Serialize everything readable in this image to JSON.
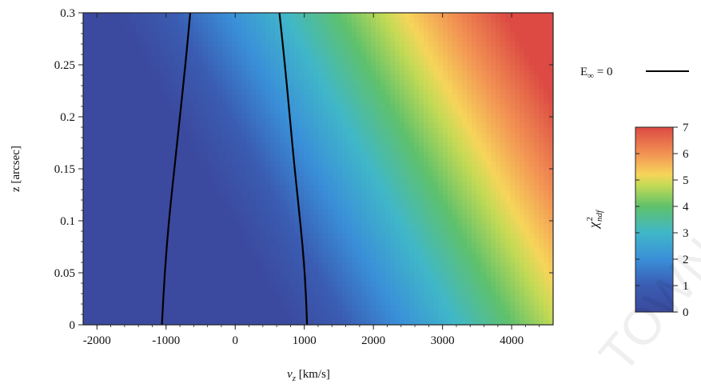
{
  "chart_data": {
    "type": "heatmap",
    "xlabel_main": "v",
    "xlabel_sub": "z",
    "xlabel_unit": " [km/s]",
    "ylabel": "z [arcsec]",
    "xlim": [
      -2200,
      4600
    ],
    "ylim": [
      0,
      0.3
    ],
    "x_ticks": [
      {
        "v": -2000,
        "label": "-2000"
      },
      {
        "v": -1000,
        "label": "-1000"
      },
      {
        "v": 0,
        "label": "0"
      },
      {
        "v": 1000,
        "label": "1000"
      },
      {
        "v": 2000,
        "label": "2000"
      },
      {
        "v": 3000,
        "label": "3000"
      },
      {
        "v": 4000,
        "label": "4000"
      }
    ],
    "y_ticks": [
      {
        "v": 0,
        "label": "0"
      },
      {
        "v": 0.05,
        "label": "0.05"
      },
      {
        "v": 0.1,
        "label": "0.1"
      },
      {
        "v": 0.15,
        "label": "0.15"
      },
      {
        "v": 0.2,
        "label": "0.2"
      },
      {
        "v": 0.25,
        "label": "0.25"
      },
      {
        "v": 0.3,
        "label": "0.3"
      }
    ],
    "colorbar": {
      "label_main": "χ",
      "label_sup": "2",
      "label_sub": "ndf",
      "range": [
        0,
        7
      ],
      "ticks": [
        {
          "v": 0,
          "label": "0"
        },
        {
          "v": 1,
          "label": "1"
        },
        {
          "v": 2,
          "label": "2"
        },
        {
          "v": 3,
          "label": "3"
        },
        {
          "v": 4,
          "label": "4"
        },
        {
          "v": 5,
          "label": "5"
        },
        {
          "v": 6,
          "label": "6"
        },
        {
          "v": 7,
          "label": "7"
        }
      ],
      "stops": [
        {
          "v": 0,
          "color": "#3b4a9e"
        },
        {
          "v": 1,
          "color": "#3a5cb2"
        },
        {
          "v": 2,
          "color": "#3a8fd8"
        },
        {
          "v": 3,
          "color": "#40b7c9"
        },
        {
          "v": 4,
          "color": "#5fc16b"
        },
        {
          "v": 4.8,
          "color": "#c4da55"
        },
        {
          "v": 5.2,
          "color": "#f6d55a"
        },
        {
          "v": 6,
          "color": "#f29253"
        },
        {
          "v": 7,
          "color": "#dc4a43"
        }
      ]
    },
    "legend": {
      "label_main": "E",
      "label_sub": "∞",
      "label_rest": " = 0",
      "line_color": "#000000",
      "position": "right"
    },
    "contour_E_inf_0": [
      {
        "name": "left",
        "points": [
          [
            -1060,
            0.0
          ],
          [
            -1020,
            0.05
          ],
          [
            -960,
            0.1
          ],
          [
            -880,
            0.15
          ],
          [
            -800,
            0.2
          ],
          [
            -720,
            0.25
          ],
          [
            -650,
            0.3
          ]
        ]
      },
      {
        "name": "right",
        "points": [
          [
            1040,
            0.0
          ],
          [
            1010,
            0.05
          ],
          [
            940,
            0.1
          ],
          [
            860,
            0.15
          ],
          [
            790,
            0.2
          ],
          [
            720,
            0.25
          ],
          [
            640,
            0.3
          ]
        ]
      }
    ],
    "watermark": "TOWN",
    "field_model": "chi2 rises toward top-right; approx chi2 = clamp(0.26 + 0.00125*(v - 1000 + 8300*z), 0, 7)"
  }
}
